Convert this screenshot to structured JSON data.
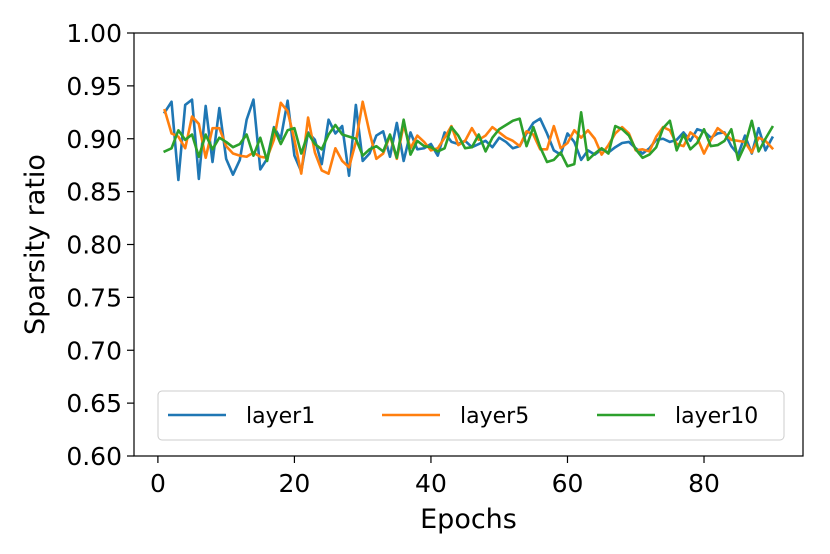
{
  "chart_data": {
    "type": "line",
    "xlabel": "Epochs",
    "ylabel": "Sparsity ratio",
    "xlim": [
      -3.5,
      94.5
    ],
    "ylim": [
      0.6,
      1.0
    ],
    "x_ticks": [
      "0",
      "20",
      "40",
      "60",
      "80"
    ],
    "x_tick_values": [
      0,
      20,
      40,
      60,
      80
    ],
    "y_ticks": [
      "0.60",
      "0.65",
      "0.70",
      "0.75",
      "0.80",
      "0.85",
      "0.90",
      "0.95",
      "1.00"
    ],
    "y_tick_values": [
      0.6,
      0.65,
      0.7,
      0.75,
      0.8,
      0.85,
      0.9,
      0.95,
      1.0
    ],
    "grid": false,
    "legend_position": "lower-center",
    "x": [
      1,
      2,
      3,
      4,
      5,
      6,
      7,
      8,
      9,
      10,
      11,
      12,
      13,
      14,
      15,
      16,
      17,
      18,
      19,
      20,
      21,
      22,
      23,
      24,
      25,
      26,
      27,
      28,
      29,
      30,
      31,
      32,
      33,
      34,
      35,
      36,
      37,
      38,
      39,
      40,
      41,
      42,
      43,
      44,
      45,
      46,
      47,
      48,
      49,
      50,
      51,
      52,
      53,
      54,
      55,
      56,
      57,
      58,
      59,
      60,
      61,
      62,
      63,
      64,
      65,
      66,
      67,
      68,
      69,
      70,
      71,
      72,
      73,
      74,
      75,
      76,
      77,
      78,
      79,
      80,
      81,
      82,
      83,
      84,
      85,
      86,
      87,
      88,
      89,
      90
    ],
    "series": [
      {
        "name": "layer1",
        "color": "#1f77b4",
        "values": [
          0.925,
          0.935,
          0.861,
          0.932,
          0.937,
          0.862,
          0.931,
          0.878,
          0.929,
          0.881,
          0.866,
          0.88,
          0.918,
          0.937,
          0.871,
          0.881,
          0.911,
          0.9,
          0.936,
          0.884,
          0.869,
          0.906,
          0.899,
          0.876,
          0.918,
          0.905,
          0.912,
          0.865,
          0.932,
          0.879,
          0.886,
          0.903,
          0.907,
          0.883,
          0.915,
          0.879,
          0.906,
          0.89,
          0.891,
          0.895,
          0.884,
          0.906,
          0.897,
          0.895,
          0.898,
          0.892,
          0.895,
          0.898,
          0.892,
          0.901,
          0.897,
          0.891,
          0.893,
          0.905,
          0.915,
          0.919,
          0.905,
          0.889,
          0.885,
          0.905,
          0.897,
          0.88,
          0.889,
          0.885,
          0.89,
          0.887,
          0.892,
          0.896,
          0.897,
          0.891,
          0.886,
          0.891,
          0.899,
          0.9,
          0.897,
          0.899,
          0.906,
          0.898,
          0.909,
          0.907,
          0.901,
          0.905,
          0.906,
          0.893,
          0.885,
          0.903,
          0.886,
          0.91,
          0.889,
          0.901
        ]
      },
      {
        "name": "layer5",
        "color": "#ff7f0e",
        "values": [
          0.927,
          0.905,
          0.902,
          0.891,
          0.921,
          0.914,
          0.882,
          0.91,
          0.91,
          0.893,
          0.886,
          0.884,
          0.883,
          0.887,
          0.883,
          0.882,
          0.899,
          0.934,
          0.926,
          0.899,
          0.867,
          0.92,
          0.887,
          0.87,
          0.867,
          0.891,
          0.879,
          0.873,
          0.897,
          0.935,
          0.906,
          0.881,
          0.886,
          0.903,
          0.881,
          0.913,
          0.891,
          0.903,
          0.897,
          0.889,
          0.891,
          0.901,
          0.912,
          0.894,
          0.898,
          0.91,
          0.899,
          0.903,
          0.911,
          0.906,
          0.901,
          0.898,
          0.893,
          0.907,
          0.904,
          0.89,
          0.89,
          0.912,
          0.891,
          0.896,
          0.908,
          0.901,
          0.908,
          0.9,
          0.885,
          0.894,
          0.905,
          0.911,
          0.905,
          0.889,
          0.89,
          0.888,
          0.902,
          0.911,
          0.908,
          0.895,
          0.893,
          0.906,
          0.901,
          0.886,
          0.899,
          0.91,
          0.905,
          0.899,
          0.898,
          0.897,
          0.887,
          0.901,
          0.898,
          0.891
        ]
      },
      {
        "name": "layer10",
        "color": "#2ca02c",
        "values": [
          0.888,
          0.891,
          0.908,
          0.899,
          0.904,
          0.883,
          0.904,
          0.89,
          0.901,
          0.897,
          0.892,
          0.895,
          0.904,
          0.884,
          0.901,
          0.879,
          0.91,
          0.895,
          0.908,
          0.91,
          0.886,
          0.905,
          0.895,
          0.89,
          0.904,
          0.913,
          0.904,
          0.902,
          0.9,
          0.884,
          0.89,
          0.893,
          0.888,
          0.904,
          0.882,
          0.918,
          0.885,
          0.898,
          0.893,
          0.892,
          0.888,
          0.891,
          0.911,
          0.903,
          0.891,
          0.892,
          0.904,
          0.888,
          0.901,
          0.909,
          0.913,
          0.917,
          0.919,
          0.893,
          0.911,
          0.892,
          0.878,
          0.88,
          0.887,
          0.874,
          0.876,
          0.925,
          0.88,
          0.886,
          0.891,
          0.886,
          0.912,
          0.909,
          0.903,
          0.89,
          0.882,
          0.885,
          0.892,
          0.91,
          0.917,
          0.889,
          0.904,
          0.89,
          0.896,
          0.909,
          0.893,
          0.894,
          0.898,
          0.909,
          0.88,
          0.894,
          0.917,
          0.888,
          0.9,
          0.911
        ]
      }
    ]
  }
}
